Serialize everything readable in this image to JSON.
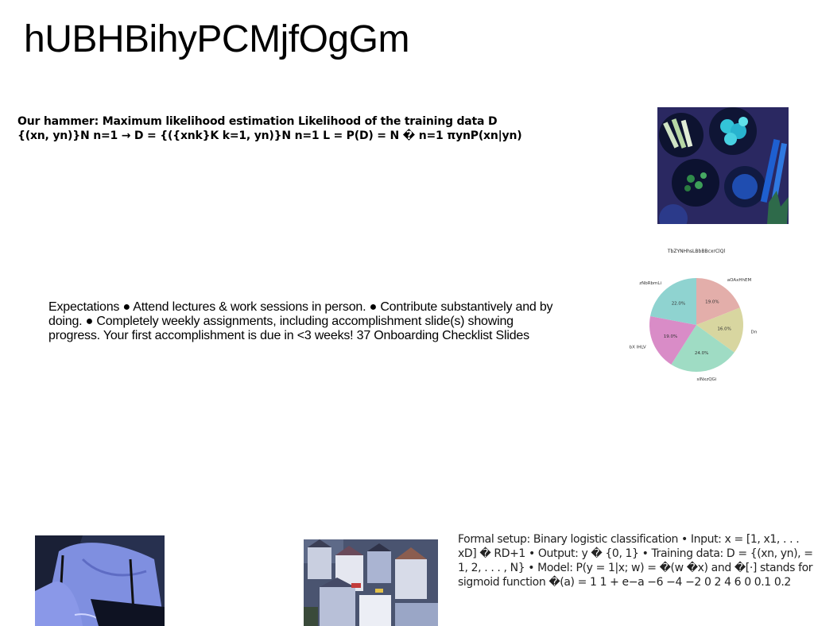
{
  "title": "hUBHBihyPCMjfOgGm",
  "hammer_text": "Our hammer: Maximum likelihood estimation Likelihood of the training data D {(xn, yn)}N n=1 → D = {({xnk}K k=1, yn)}N n=1 L = P(D) = N � n=1 πynP(xn|yn)",
  "expectations_text": "Expectations ● Attend lectures & work sessions in person. ● Contribute substantively and by doing. ● Completely weekly assignments, including accomplishment slide(s) showing progress. Your first accomplishment is due in <3 weeks! 37 Onboarding Checklist Slides",
  "formal_text": "Formal setup: Binary logistic classification • Input: x = [1, x1, . . . xD] � RD+1 • Output: y � {0, 1} • Training data: D = {(xn, yn), = 1, 2, . . . , N} • Model: P(y = 1|x; w) = �(w �x) and �[·] stands for sigmoid function �(a) = 1 1 + e−a −6 −4 −2 0 2 4 6 0 0.1 0.2",
  "chart_data": {
    "type": "pie",
    "title": "TbZYNHhsLBbBBcxrClQl",
    "categories": [
      "aOAxHhEM",
      "DmjYP",
      "sINxzQGi",
      "bX IHLV",
      "zNbRbmLi"
    ],
    "values": [
      19.0,
      16.0,
      24.0,
      19.0,
      22.0
    ],
    "value_labels": [
      "19.0%",
      "16.0%",
      "24.0%",
      "19.0%",
      "22.0%"
    ],
    "colors": [
      "#e3aeaa",
      "#d8d6a0",
      "#9fdcc4",
      "#d98cc7",
      "#8fd3d0"
    ],
    "start_angle_deg": 90,
    "direction": "clockwise"
  }
}
